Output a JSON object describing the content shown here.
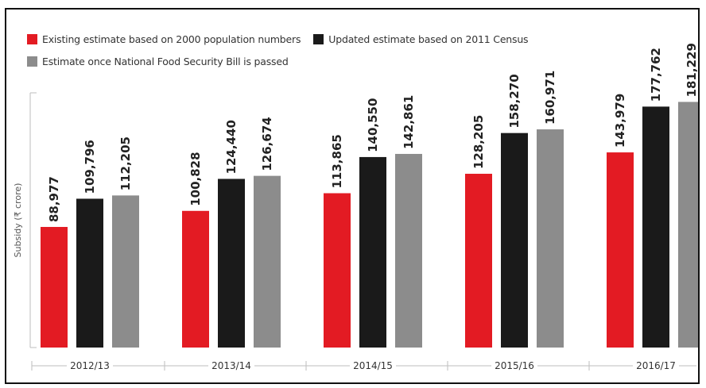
{
  "chart_data": {
    "type": "bar",
    "ylabel": "Subsidy (₹ crore)",
    "categories": [
      "2012/13",
      "2013/14",
      "2014/15",
      "2015/16",
      "2016/17"
    ],
    "series": [
      {
        "name": "Existing estimate based on 2000 population numbers",
        "color": "#e31b23",
        "values": [
          88977,
          100828,
          113865,
          128205,
          143979
        ],
        "labels": [
          "88,977",
          "100,828",
          "113,865",
          "128,205",
          "143,979"
        ]
      },
      {
        "name": "Updated estimate based on 2011 Census",
        "color": "#1a1a1a",
        "values": [
          109796,
          124440,
          140550,
          158270,
          177762
        ],
        "labels": [
          "109,796",
          "124,440",
          "140,550",
          "158,270",
          "177,762"
        ]
      },
      {
        "name": "Estimate once National Food Security Bill is passed",
        "color": "#8c8c8c",
        "values": [
          112205,
          126674,
          142861,
          160971,
          181229
        ],
        "labels": [
          "112,205",
          "126,674",
          "142,861",
          "160,971",
          "181,229"
        ]
      }
    ],
    "ylim": [
      0,
      185000
    ],
    "grid": false,
    "legend_position": "top-left"
  }
}
